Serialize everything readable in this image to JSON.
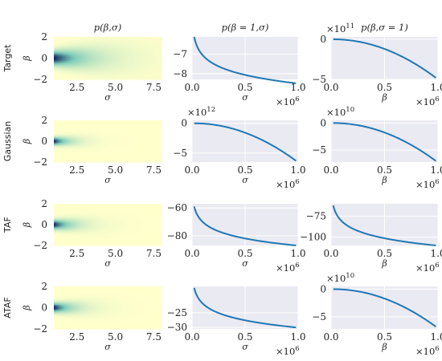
{
  "figure": {
    "colors": {
      "panel_bg": "#EAEAF2",
      "grid": "#FFFFFF",
      "line": "#1F77B4",
      "heat_low": "#FFFFCC",
      "heat_mid": "#7FCDBB",
      "heat_high": "#081D58"
    }
  },
  "chart_data": [
    {
      "type": "heatmap",
      "row": "Target",
      "title": "p(β,σ)",
      "xlabel": "σ",
      "ylabel": "β",
      "xlim": [
        1.0,
        8.0
      ],
      "ylim": [
        -2,
        2
      ],
      "xticks": [
        "2.5",
        "5.0",
        "7.5"
      ],
      "yticks": [
        "2",
        "0",
        "−2"
      ],
      "concentration": {
        "sigma_scale": 2.0,
        "beta_spread": 0.45
      }
    },
    {
      "type": "line",
      "row": "Target",
      "title": "p(β = 1,σ)",
      "xlabel": "σ",
      "x_multiplier": "×10^6",
      "xlim": [
        0,
        1.0
      ],
      "ylim": [
        -8.3,
        -6.1
      ],
      "xticks": [
        "0.0",
        "0.5",
        "1.0"
      ],
      "yticks": [
        "−7",
        "−8"
      ],
      "curve": {
        "kind": "log",
        "y_at_x_min": -6.1,
        "y_at_x_max": -8.5
      }
    },
    {
      "type": "line",
      "row": "Target",
      "title": "p(β,σ = 1)",
      "xlabel": "β",
      "x_multiplier": "×10^6",
      "y_multiplier": "×10^11",
      "xlim": [
        0,
        1.0
      ],
      "ylim": [
        -5,
        0.3
      ],
      "xticks": [
        "0.0",
        "0.5",
        "1.0"
      ],
      "yticks": [
        "0",
        "−5"
      ],
      "curve": {
        "kind": "quadratic",
        "y_at_x_min": 0,
        "y_at_x_max": -4.8
      }
    },
    {
      "type": "heatmap",
      "row": "Gaussian",
      "title": "",
      "xlabel": "σ",
      "ylabel": "β",
      "xlim": [
        1.0,
        8.0
      ],
      "ylim": [
        -2,
        2
      ],
      "xticks": [
        "2.5",
        "5.0",
        "7.5"
      ],
      "yticks": [
        "2",
        "0",
        "−2"
      ],
      "concentration": {
        "sigma_scale": 0.9,
        "beta_spread": 0.25
      }
    },
    {
      "type": "line",
      "row": "Gaussian",
      "title": "",
      "xlabel": "σ",
      "x_multiplier": "×10^6",
      "y_multiplier": "×10^12",
      "xlim": [
        0,
        1.0
      ],
      "ylim": [
        -6.5,
        0.5
      ],
      "xticks": [
        "0.0",
        "0.5",
        "1.0"
      ],
      "yticks": [
        "0",
        "−5"
      ],
      "curve": {
        "kind": "quadratic",
        "y_at_x_min": 0,
        "y_at_x_max": -6.3
      }
    },
    {
      "type": "line",
      "row": "Gaussian",
      "title": "",
      "xlabel": "β",
      "x_multiplier": "×10^6",
      "y_multiplier": "×10^10",
      "xlim": [
        0,
        1.0
      ],
      "ylim": [
        -7.2,
        0.5
      ],
      "xticks": [
        "0.0",
        "0.5",
        "1.0"
      ],
      "yticks": [
        "0",
        "−5"
      ],
      "curve": {
        "kind": "quadratic",
        "y_at_x_min": 0,
        "y_at_x_max": -7.0
      }
    },
    {
      "type": "heatmap",
      "row": "TAF",
      "title": "",
      "xlabel": "σ",
      "ylabel": "β",
      "xlim": [
        1.0,
        8.0
      ],
      "ylim": [
        -2,
        2
      ],
      "xticks": [
        "2.5",
        "5.0",
        "7.5"
      ],
      "yticks": [
        "2",
        "0",
        "−2"
      ],
      "concentration": {
        "sigma_scale": 1.1,
        "beta_spread": 0.3
      }
    },
    {
      "type": "line",
      "row": "TAF",
      "title": "",
      "xlabel": "σ",
      "x_multiplier": "×10^6",
      "xlim": [
        0,
        1.0
      ],
      "ylim": [
        -87,
        -57
      ],
      "xticks": [
        "0.0",
        "0.5",
        "1.0"
      ],
      "yticks": [
        "−60",
        "−80"
      ],
      "curve": {
        "kind": "log",
        "y_at_x_min": -59,
        "y_at_x_max": -87
      }
    },
    {
      "type": "line",
      "row": "TAF",
      "title": "",
      "xlabel": "β",
      "x_multiplier": "×10^6",
      "xlim": [
        0,
        1.0
      ],
      "ylim": [
        -110,
        -60
      ],
      "xticks": [
        "0.0",
        "0.5",
        "1.0"
      ],
      "yticks": [
        "−75",
        "−100"
      ],
      "curve": {
        "kind": "log",
        "y_at_x_min": -62,
        "y_at_x_max": -110
      }
    },
    {
      "type": "heatmap",
      "row": "ATAF",
      "title": "",
      "xlabel": "σ",
      "ylabel": "β",
      "xlim": [
        1.0,
        8.0
      ],
      "ylim": [
        -2,
        2
      ],
      "xticks": [
        "2.5",
        "5.0",
        "7.5"
      ],
      "yticks": [
        "2",
        "0",
        "−2"
      ],
      "concentration": {
        "sigma_scale": 1.1,
        "beta_spread": 0.3
      }
    },
    {
      "type": "line",
      "row": "ATAF",
      "title": "",
      "xlabel": "σ",
      "x_multiplier": "×10^6",
      "xlim": [
        0,
        1.0
      ],
      "ylim": [
        -30.5,
        -16
      ],
      "xticks": [
        "0.0",
        "0.5",
        "1.0"
      ],
      "yticks": [
        "−25",
        "−30"
      ],
      "curve": {
        "kind": "log",
        "y_at_x_min": -16.5,
        "y_at_x_max": -30
      }
    },
    {
      "type": "line",
      "row": "ATAF",
      "title": "",
      "xlabel": "β",
      "x_multiplier": "×10^6",
      "y_multiplier": "×10^10",
      "xlim": [
        0,
        1.0
      ],
      "ylim": [
        -7.2,
        0.5
      ],
      "xticks": [
        "0.0",
        "0.5",
        "1.0"
      ],
      "yticks": [
        "0",
        "−5"
      ],
      "curve": {
        "kind": "quadratic",
        "y_at_x_min": 0,
        "y_at_x_max": -6.8
      }
    }
  ]
}
